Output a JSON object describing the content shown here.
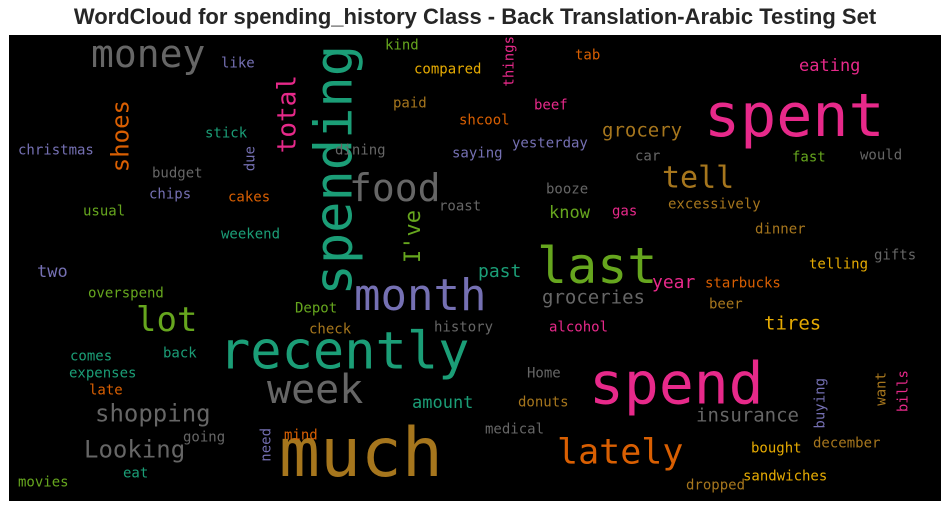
{
  "chart_data": {
    "type": "wordcloud",
    "title": "WordCloud for spending_history Class - Back Translation-Arabic Testing Set",
    "background": "#000000",
    "words": [
      {
        "text": "spent",
        "color": "#e7298a"
      },
      {
        "text": "money",
        "color": "#666666"
      },
      {
        "text": "spending",
        "color": "#1b9e77"
      },
      {
        "text": "total",
        "color": "#e7298a"
      },
      {
        "text": "shoes",
        "color": "#d95f02"
      },
      {
        "text": "food",
        "color": "#666666"
      },
      {
        "text": "tell",
        "color": "#a6761d"
      },
      {
        "text": "eating",
        "color": "#e7298a"
      },
      {
        "text": "last",
        "color": "#66a61e"
      },
      {
        "text": "month",
        "color": "#7570b3"
      },
      {
        "text": "lot",
        "color": "#66a61e"
      },
      {
        "text": "recently",
        "color": "#1b9e77"
      },
      {
        "text": "week",
        "color": "#666666"
      },
      {
        "text": "spend",
        "color": "#e7298a"
      },
      {
        "text": "much",
        "color": "#a6761d"
      },
      {
        "text": "lately",
        "color": "#d95f02"
      },
      {
        "text": "I've",
        "color": "#66a61e"
      },
      {
        "text": "shopping",
        "color": "#666666"
      },
      {
        "text": "Looking",
        "color": "#666666"
      },
      {
        "text": "insurance",
        "color": "#666666"
      },
      {
        "text": "grocery",
        "color": "#a6761d"
      },
      {
        "text": "groceries",
        "color": "#666666"
      },
      {
        "text": "tires",
        "color": "#e6ab02"
      },
      {
        "text": "year",
        "color": "#e7298a"
      },
      {
        "text": "past",
        "color": "#1b9e77"
      },
      {
        "text": "amount",
        "color": "#1b9e77"
      },
      {
        "text": "know",
        "color": "#66a61e"
      },
      {
        "text": "two",
        "color": "#7570b3"
      },
      {
        "text": "kind",
        "color": "#66a61e"
      },
      {
        "text": "things",
        "color": "#e7298a"
      },
      {
        "text": "tab",
        "color": "#d95f02"
      },
      {
        "text": "like",
        "color": "#7570b3"
      },
      {
        "text": "compared",
        "color": "#e6ab02"
      },
      {
        "text": "paid",
        "color": "#a6761d"
      },
      {
        "text": "beef",
        "color": "#e7298a"
      },
      {
        "text": "shcool",
        "color": "#d95f02"
      },
      {
        "text": "stick",
        "color": "#1b9e77"
      },
      {
        "text": "christmas",
        "color": "#7570b3"
      },
      {
        "text": "dining",
        "color": "#666666"
      },
      {
        "text": "saying",
        "color": "#7570b3"
      },
      {
        "text": "yesterday",
        "color": "#7570b3"
      },
      {
        "text": "car",
        "color": "#666666"
      },
      {
        "text": "fast",
        "color": "#66a61e"
      },
      {
        "text": "would",
        "color": "#666666"
      },
      {
        "text": "budget",
        "color": "#666666"
      },
      {
        "text": "due",
        "color": "#7570b3"
      },
      {
        "text": "chips",
        "color": "#7570b3"
      },
      {
        "text": "cakes",
        "color": "#d95f02"
      },
      {
        "text": "roast",
        "color": "#666666"
      },
      {
        "text": "booze",
        "color": "#666666"
      },
      {
        "text": "gas",
        "color": "#e7298a"
      },
      {
        "text": "excessively",
        "color": "#a6761d"
      },
      {
        "text": "usual",
        "color": "#66a61e"
      },
      {
        "text": "weekend",
        "color": "#1b9e77"
      },
      {
        "text": "dinner",
        "color": "#a6761d"
      },
      {
        "text": "gifts",
        "color": "#666666"
      },
      {
        "text": "telling",
        "color": "#e6ab02"
      },
      {
        "text": "starbucks",
        "color": "#d95f02"
      },
      {
        "text": "beer",
        "color": "#a6761d"
      },
      {
        "text": "overspend",
        "color": "#66a61e"
      },
      {
        "text": "Depot",
        "color": "#66a61e"
      },
      {
        "text": "check",
        "color": "#a6761d"
      },
      {
        "text": "history",
        "color": "#666666"
      },
      {
        "text": "alcohol",
        "color": "#e7298a"
      },
      {
        "text": "comes",
        "color": "#1b9e77"
      },
      {
        "text": "back",
        "color": "#1b9e77"
      },
      {
        "text": "expenses",
        "color": "#1b9e77"
      },
      {
        "text": "late",
        "color": "#d95f02"
      },
      {
        "text": "Home",
        "color": "#666666"
      },
      {
        "text": "donuts",
        "color": "#a6761d"
      },
      {
        "text": "buying",
        "color": "#7570b3"
      },
      {
        "text": "want",
        "color": "#a6761d"
      },
      {
        "text": "bills",
        "color": "#e7298a"
      },
      {
        "text": "medical",
        "color": "#666666"
      },
      {
        "text": "going",
        "color": "#666666"
      },
      {
        "text": "mind",
        "color": "#d95f02"
      },
      {
        "text": "need",
        "color": "#7570b3"
      },
      {
        "text": "bought",
        "color": "#e6ab02"
      },
      {
        "text": "december",
        "color": "#a6761d"
      },
      {
        "text": "eat",
        "color": "#1b9e77"
      },
      {
        "text": "sandwiches",
        "color": "#e6ab02"
      },
      {
        "text": "movies",
        "color": "#66a61e"
      },
      {
        "text": "dropped",
        "color": "#a6761d"
      }
    ]
  }
}
